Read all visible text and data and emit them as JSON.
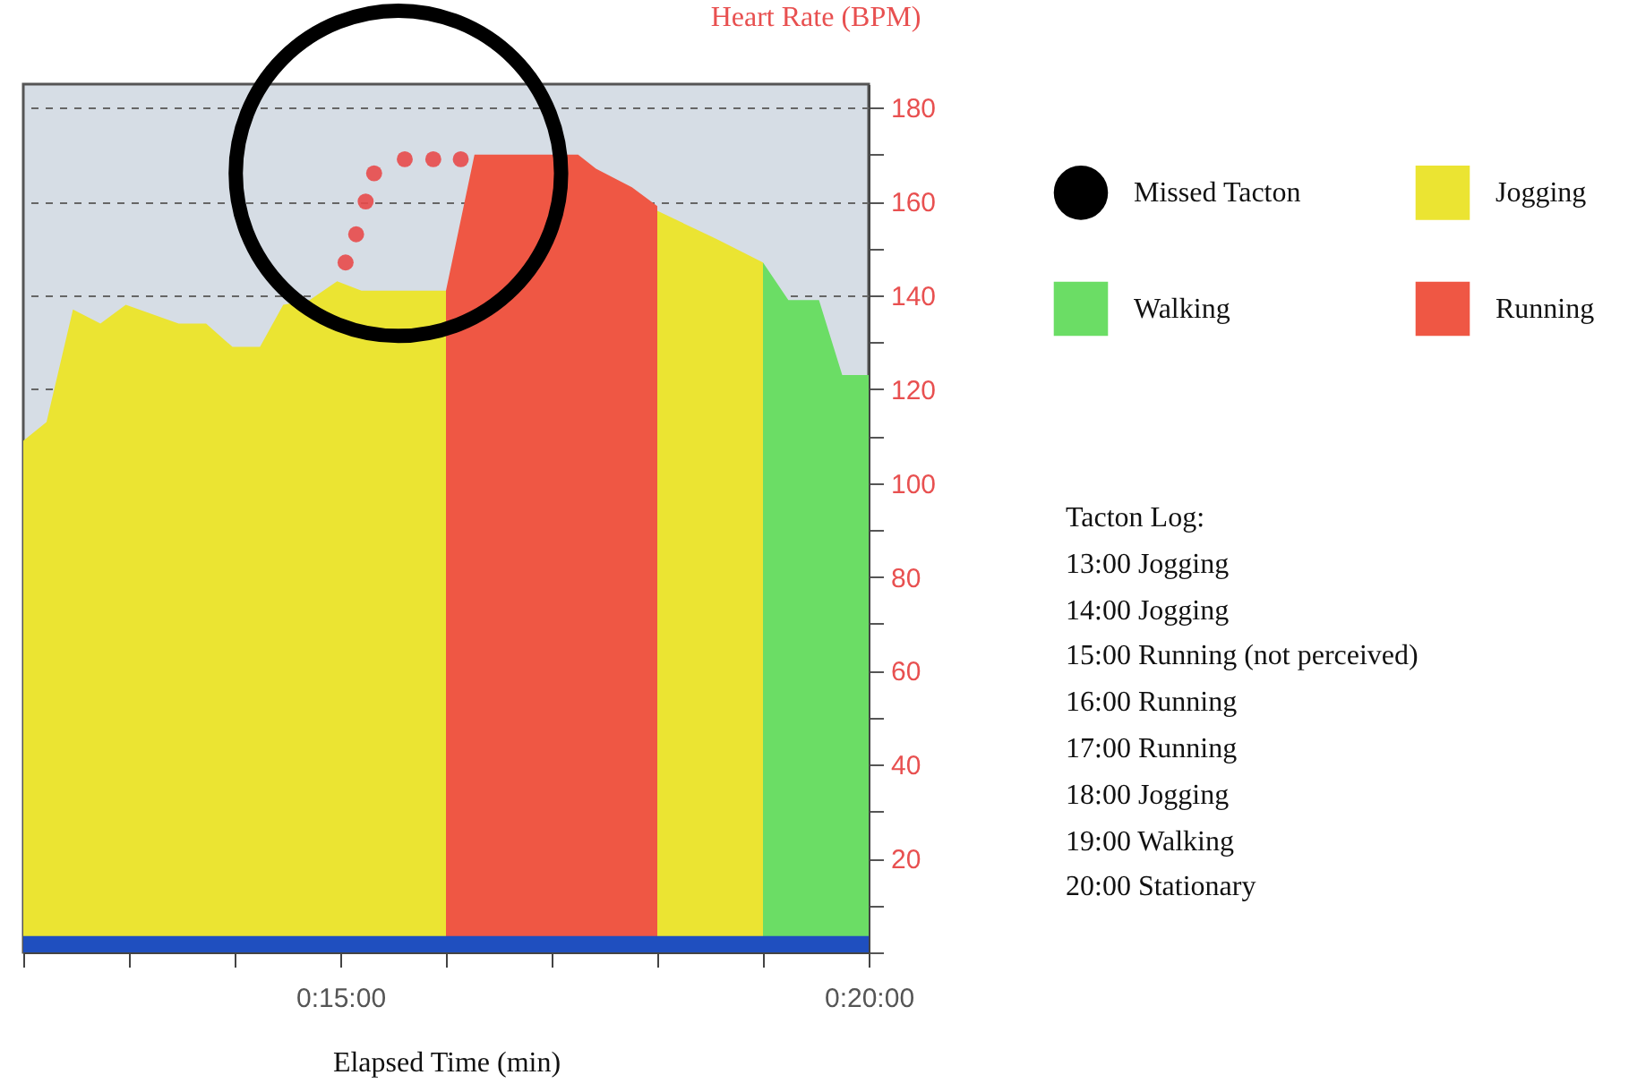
{
  "chart_data": {
    "type": "area",
    "xlabel": "Elapsed Time (min)",
    "ylabel": "Heart Rate (BPM)",
    "xlim": [
      12,
      20
    ],
    "xticks": [
      {
        "value": 12,
        "label": null
      },
      {
        "value": 13,
        "label": null
      },
      {
        "value": 14,
        "label": null
      },
      {
        "value": 15,
        "label": "0:15:00"
      },
      {
        "value": 16,
        "label": null
      },
      {
        "value": 17,
        "label": null
      },
      {
        "value": 18,
        "label": null
      },
      {
        "value": 19,
        "label": null
      },
      {
        "value": 20,
        "label": "0:20:00"
      }
    ],
    "ylim": [
      0,
      185
    ],
    "yticks": [
      {
        "value": 0,
        "label": null
      },
      {
        "value": 10,
        "label": null
      },
      20,
      {
        "value": 30,
        "label": null
      },
      40,
      {
        "value": 50,
        "label": null
      },
      60,
      {
        "value": 70,
        "label": null
      },
      80,
      {
        "value": 90,
        "label": null
      },
      100,
      {
        "value": 110,
        "label": null
      },
      120,
      {
        "value": 130,
        "label": null
      },
      140,
      {
        "value": 150,
        "label": null
      },
      160,
      {
        "value": 170,
        "label": null
      },
      180
    ],
    "grid": "y",
    "legend": "right",
    "series": [
      {
        "name": "Missed Tacton",
        "type": "bubble",
        "color": "#000000",
        "x": [
          15.55
        ],
        "values": [
          166
        ],
        "sizes": [
          1
        ]
      },
      {
        "name": "Jogging",
        "color": "#ebe432",
        "x": [
          12.0,
          12.22,
          12.47,
          12.73,
          12.97,
          13.47,
          13.73,
          13.98,
          14.24,
          14.46,
          14.71,
          14.97,
          15.2,
          16.0
        ],
        "values": [
          109,
          113,
          137,
          134,
          138,
          134,
          134,
          129,
          129,
          138,
          139,
          143,
          141,
          141
        ]
      },
      {
        "name": "Walking",
        "color": "#6bdd65",
        "x": [
          19.0,
          19.24,
          19.53,
          19.75,
          20.0
        ],
        "values": [
          147,
          139,
          139,
          123,
          123
        ]
      },
      {
        "name": "Running",
        "color": "#ef5744",
        "x": [
          16.0,
          16.27,
          17.25,
          17.42,
          17.76,
          18.0
        ],
        "values": [
          141,
          170,
          170,
          167,
          163,
          159
        ]
      },
      {
        "color": "#ebe432",
        "x": [
          18.0,
          18.56,
          19.0
        ],
        "values": [
          158,
          152,
          147
        ]
      },
      {
        "type": "scatter",
        "color": "#e84a4a",
        "x": [
          15.05,
          15.15,
          15.24,
          15.32,
          15.61,
          15.88,
          16.14
        ],
        "values": [
          147,
          153,
          160,
          166,
          169,
          169,
          169
        ]
      }
    ],
    "bands": [
      {
        "axis": "y",
        "from": 0,
        "to": 3.5,
        "color": "#1f4fbf"
      }
    ],
    "annotations": [
      "Tacton Log:",
      "13:00 Jogging",
      "14:00 Jogging",
      "15:00 Running (not perceived)",
      "16:00 Running",
      "17:00 Running",
      "18:00 Jogging",
      "19:00 Walking",
      "20:00 Stationary"
    ]
  }
}
